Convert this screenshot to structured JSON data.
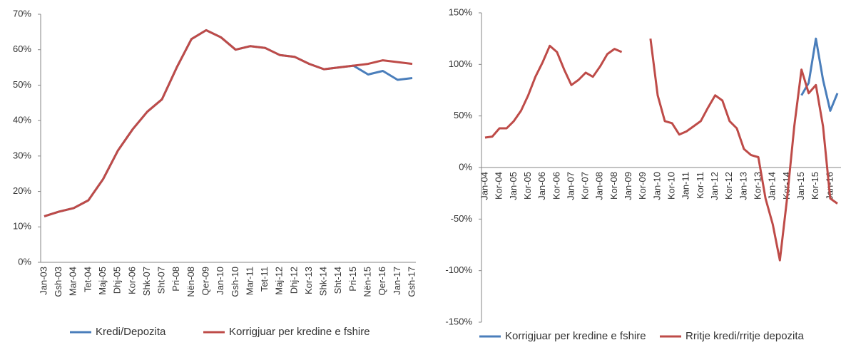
{
  "chart_data": [
    {
      "type": "line",
      "categories": [
        "Jan-03",
        "Gsh-03",
        "Mar-04",
        "Tet-04",
        "Maj-05",
        "Dhj-05",
        "Kor-06",
        "Shk-07",
        "Sht-07",
        "Pri-08",
        "Nën-08",
        "Qer-09",
        "Jan-10",
        "Gsh-10",
        "Mar-11",
        "Tet-11",
        "Maj-12",
        "Dhj-12",
        "Kor-13",
        "Shk-14",
        "Sht-14",
        "Pri-15",
        "Nën-15",
        "Qer-16",
        "Jan-17",
        "Gsh-17"
      ],
      "series": [
        {
          "name": "Kredi/Depozita",
          "color": "#4a7ebb",
          "values": [
            13,
            14.3,
            15.3,
            17.5,
            23.5,
            31.5,
            37.5,
            42.5,
            46,
            55,
            63,
            65.5,
            63.5,
            60,
            61,
            60.5,
            58.5,
            58,
            56,
            54.5,
            55,
            55.5,
            53,
            54,
            51.5,
            52
          ]
        },
        {
          "name": "Korrigjuar per kredine e fshire",
          "color": "#be4b48",
          "values": [
            13,
            14.3,
            15.3,
            17.5,
            23.5,
            31.5,
            37.5,
            42.5,
            46,
            55,
            63,
            65.5,
            63.5,
            60,
            61,
            60.5,
            58.5,
            58,
            56,
            54.5,
            55,
            55.5,
            56,
            57,
            56.5,
            56
          ]
        }
      ],
      "ylim": [
        0,
        70
      ],
      "yticks": [
        {
          "value": 0,
          "label": "0%"
        },
        {
          "value": 10,
          "label": "10%"
        },
        {
          "value": 20,
          "label": "20%"
        },
        {
          "value": 30,
          "label": "30%"
        },
        {
          "value": 40,
          "label": "40%"
        },
        {
          "value": 50,
          "label": "50%"
        },
        {
          "value": 60,
          "label": "60%"
        },
        {
          "value": 70,
          "label": "70%"
        }
      ],
      "grid": false,
      "legend": "bottom"
    },
    {
      "type": "line",
      "categories": [
        "Jan-04",
        null,
        "Kor-04",
        null,
        "Jan-05",
        null,
        "Kor-05",
        null,
        "Jan-06",
        null,
        "Kor-06",
        null,
        "Jan-07",
        null,
        "Kor-07",
        null,
        "Jan-08",
        null,
        "Kor-08",
        null,
        "Jan-09",
        null,
        "Kor-09",
        null,
        "Jan-10",
        null,
        "Kor-10",
        null,
        "Jan-11",
        null,
        "Kor-11",
        null,
        "Jan-12",
        null,
        "Kor-12",
        null,
        "Jan-13",
        null,
        "Kor-13",
        null,
        "Jan-14",
        null,
        "Kor-14",
        null,
        "Jan-15",
        null,
        "Kor-15",
        null,
        "Jan-16",
        null
      ],
      "series": [
        {
          "name": "Korrigjuar per kredine e fshire",
          "color": "#4a7ebb",
          "values": [
            null,
            null,
            null,
            null,
            null,
            null,
            null,
            null,
            null,
            null,
            null,
            null,
            null,
            null,
            null,
            null,
            null,
            null,
            null,
            null,
            null,
            null,
            null,
            null,
            null,
            null,
            null,
            null,
            null,
            null,
            null,
            null,
            null,
            null,
            null,
            null,
            null,
            null,
            null,
            null,
            null,
            null,
            null,
            null,
            70,
            82,
            125,
            85,
            55,
            72
          ]
        },
        {
          "name": "Rritje kredi/rritje depozita",
          "color": "#be4b48",
          "values": [
            29,
            30,
            38,
            38,
            45,
            55,
            70,
            88,
            102,
            118,
            112,
            95,
            80,
            85,
            92,
            88,
            98,
            110,
            115,
            112,
            null,
            null,
            null,
            125,
            70,
            45,
            43,
            32,
            35,
            40,
            45,
            58,
            70,
            65,
            45,
            38,
            18,
            12,
            10,
            -30,
            -55,
            -90,
            -30,
            40,
            95,
            72,
            80,
            40,
            -30,
            -35
          ]
        }
      ],
      "ylim": [
        -150,
        150
      ],
      "yticks": [
        {
          "value": -150,
          "label": "-150%"
        },
        {
          "value": -100,
          "label": "-100%"
        },
        {
          "value": -50,
          "label": "-50%"
        },
        {
          "value": 0,
          "label": "0%"
        },
        {
          "value": 50,
          "label": "50%"
        },
        {
          "value": 100,
          "label": "100%"
        },
        {
          "value": 150,
          "label": "150%"
        }
      ],
      "grid": false,
      "legend": "bottom"
    }
  ]
}
